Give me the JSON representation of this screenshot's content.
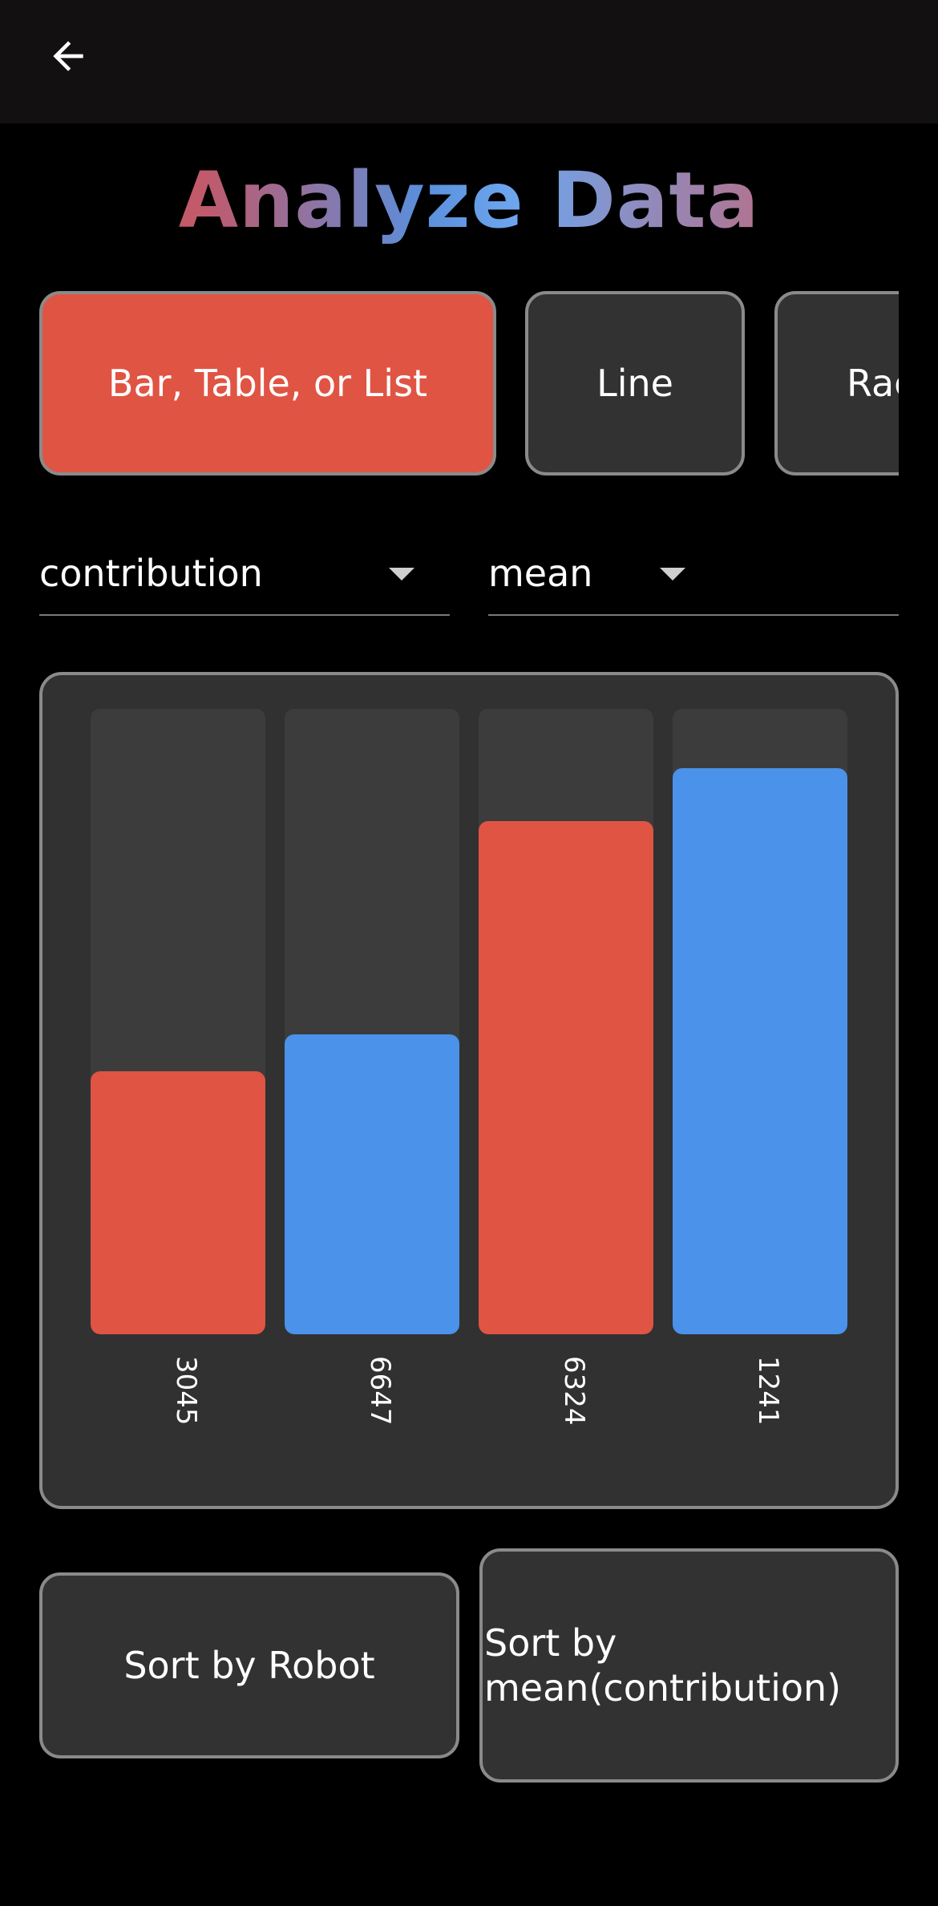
{
  "appbar": {
    "back_icon": "arrow-left-icon"
  },
  "title": "Analyze Data",
  "chart_types": [
    {
      "label": "Bar, Table, or List",
      "active": true
    },
    {
      "label": "Line",
      "active": false
    },
    {
      "label": "Rac",
      "active": false
    }
  ],
  "selectors": {
    "field": "contribution",
    "aggregation": "mean"
  },
  "colors": {
    "red": "#e05444",
    "blue": "#4a92ea",
    "track": "#3c3c3c"
  },
  "chart_data": {
    "type": "bar",
    "categories": [
      "3045",
      "6647",
      "6324",
      "1241"
    ],
    "values": [
      0.42,
      0.48,
      0.82,
      0.905
    ],
    "value_scale": "fraction of max",
    "bar_colors": [
      "#e05444",
      "#4a92ea",
      "#e05444",
      "#4a92ea"
    ]
  },
  "sort_buttons": {
    "robot": "Sort by Robot",
    "metric": "Sort by mean(contribution)"
  }
}
